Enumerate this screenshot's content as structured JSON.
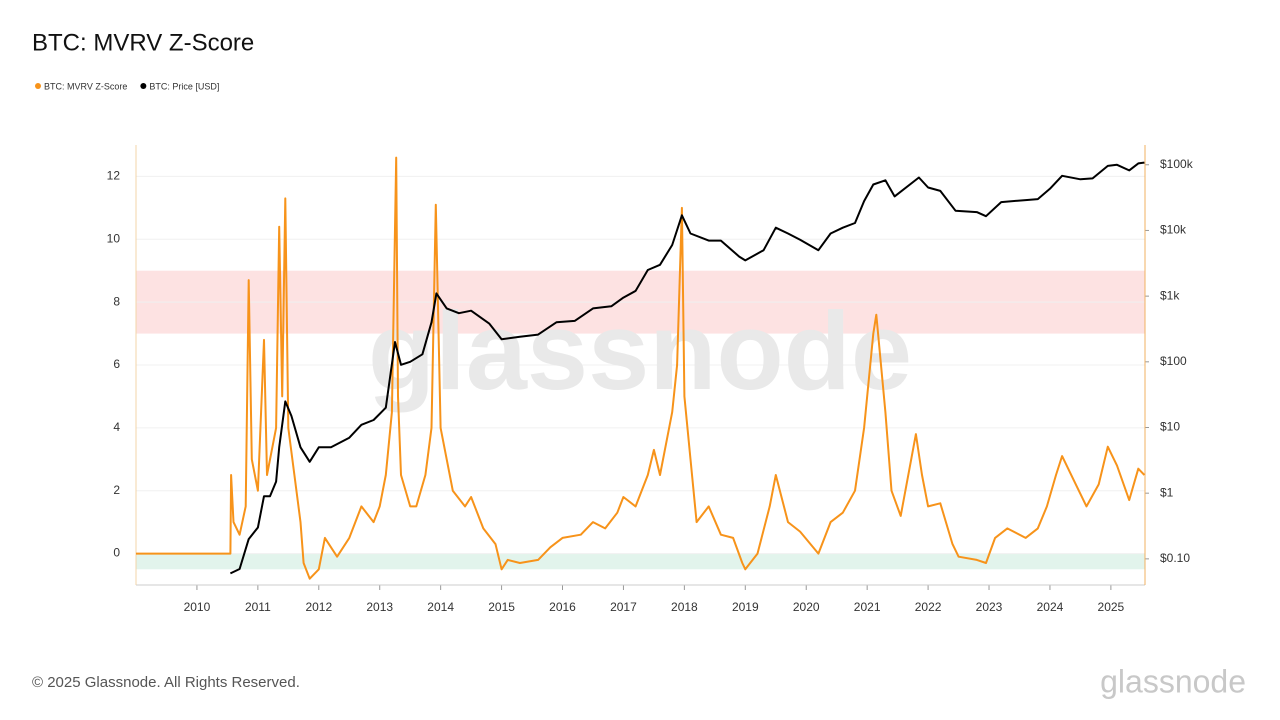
{
  "chart_data": {
    "type": "line",
    "title": "BTC: MVRV Z-Score",
    "legend": "top-left",
    "grid": true,
    "y2log": true,
    "xlim": [
      2009,
      2025.56
    ],
    "xticks": [
      2010,
      2011,
      2012,
      2013,
      2014,
      2015,
      2016,
      2017,
      2018,
      2019,
      2020,
      2021,
      2022,
      2023,
      2024,
      2025
    ],
    "ylim": [
      -1,
      13
    ],
    "yticks": [
      0,
      2,
      4,
      6,
      8,
      10,
      12
    ],
    "y2lim": [
      0.04,
      200000
    ],
    "y2ticks": [
      {
        "value": 100000,
        "label": "$100k"
      },
      {
        "value": 10000,
        "label": "$10k"
      },
      {
        "value": 1000,
        "label": "$1k"
      },
      {
        "value": 100,
        "label": "$100"
      },
      {
        "value": 10,
        "label": "$10"
      },
      {
        "value": 1,
        "label": "$1"
      },
      {
        "value": 0.1,
        "label": "$0.10"
      }
    ],
    "bands": [
      {
        "from": 7,
        "to": 9,
        "color": "#fde2e2"
      },
      {
        "from": -0.5,
        "to": 0,
        "color": "#e2f4ec"
      }
    ],
    "series": [
      {
        "name": "BTC: MVRV Z-Score",
        "color": "#f7931a",
        "x": [
          2009.0,
          2010.55,
          2010.56,
          2010.6,
          2010.7,
          2010.8,
          2010.85,
          2010.9,
          2011.0,
          2011.1,
          2011.15,
          2011.3,
          2011.35,
          2011.4,
          2011.45,
          2011.5,
          2011.6,
          2011.7,
          2011.75,
          2011.85,
          2012.0,
          2012.1,
          2012.3,
          2012.5,
          2012.7,
          2012.9,
          2013.0,
          2013.1,
          2013.2,
          2013.27,
          2013.3,
          2013.35,
          2013.5,
          2013.6,
          2013.75,
          2013.85,
          2013.92,
          2014.0,
          2014.1,
          2014.2,
          2014.4,
          2014.5,
          2014.7,
          2014.9,
          2015.0,
          2015.1,
          2015.3,
          2015.6,
          2015.8,
          2016.0,
          2016.3,
          2016.5,
          2016.7,
          2016.9,
          2017.0,
          2017.2,
          2017.4,
          2017.5,
          2017.6,
          2017.7,
          2017.8,
          2017.88,
          2017.96,
          2018.0,
          2018.1,
          2018.2,
          2018.4,
          2018.6,
          2018.8,
          2018.95,
          2019.0,
          2019.2,
          2019.4,
          2019.5,
          2019.7,
          2019.9,
          2020.2,
          2020.4,
          2020.6,
          2020.8,
          2020.95,
          2021.1,
          2021.15,
          2021.3,
          2021.4,
          2021.55,
          2021.8,
          2021.9,
          2022.0,
          2022.2,
          2022.4,
          2022.5,
          2022.8,
          2022.95,
          2023.1,
          2023.3,
          2023.6,
          2023.8,
          2023.95,
          2024.1,
          2024.2,
          2024.4,
          2024.6,
          2024.8,
          2024.95,
          2025.1,
          2025.3,
          2025.45,
          2025.55
        ],
        "values": [
          0,
          0,
          2.5,
          1.0,
          0.6,
          1.5,
          8.7,
          3,
          2.0,
          6.8,
          2.5,
          4,
          10.4,
          5,
          11.3,
          4,
          2.5,
          1.0,
          -0.3,
          -0.8,
          -0.5,
          0.5,
          -0.1,
          0.5,
          1.5,
          1.0,
          1.5,
          2.5,
          4.5,
          12.6,
          5,
          2.5,
          1.5,
          1.5,
          2.5,
          4,
          11.1,
          4,
          3,
          2.0,
          1.5,
          1.8,
          0.8,
          0.3,
          -0.5,
          -0.2,
          -0.3,
          -0.2,
          0.2,
          0.5,
          0.6,
          1.0,
          0.8,
          1.3,
          1.8,
          1.5,
          2.5,
          3.3,
          2.5,
          3.5,
          4.5,
          6.0,
          11.0,
          5,
          3,
          1.0,
          1.5,
          0.6,
          0.5,
          -0.3,
          -0.5,
          0,
          1.5,
          2.5,
          1.0,
          0.7,
          0,
          1.0,
          1.3,
          2.0,
          4.0,
          7.0,
          7.6,
          4.5,
          2.0,
          1.2,
          3.8,
          2.5,
          1.5,
          1.6,
          0.3,
          -0.1,
          -0.2,
          -0.3,
          0.5,
          0.8,
          0.5,
          0.8,
          1.5,
          2.5,
          3.1,
          2.3,
          1.5,
          2.2,
          3.4,
          2.8,
          1.7,
          2.7,
          2.5
        ]
      },
      {
        "name": "BTC: Price [USD]",
        "color": "#000000",
        "axis": "y2",
        "x": [
          2010.55,
          2010.7,
          2010.85,
          2011.0,
          2011.1,
          2011.2,
          2011.3,
          2011.35,
          2011.45,
          2011.55,
          2011.7,
          2011.85,
          2012.0,
          2012.2,
          2012.5,
          2012.7,
          2012.9,
          2013.1,
          2013.25,
          2013.35,
          2013.5,
          2013.7,
          2013.85,
          2013.93,
          2014.1,
          2014.3,
          2014.5,
          2014.8,
          2015.0,
          2015.3,
          2015.6,
          2015.9,
          2016.2,
          2016.5,
          2016.8,
          2017.0,
          2017.2,
          2017.4,
          2017.6,
          2017.8,
          2017.96,
          2018.1,
          2018.4,
          2018.6,
          2018.9,
          2019.0,
          2019.3,
          2019.5,
          2019.7,
          2019.9,
          2020.2,
          2020.4,
          2020.6,
          2020.8,
          2020.95,
          2021.1,
          2021.3,
          2021.45,
          2021.85,
          2022.0,
          2022.2,
          2022.45,
          2022.8,
          2022.95,
          2023.2,
          2023.6,
          2023.8,
          2024.0,
          2024.2,
          2024.5,
          2024.7,
          2024.95,
          2025.1,
          2025.3,
          2025.45,
          2025.55
        ],
        "values": [
          0.06,
          0.07,
          0.2,
          0.3,
          0.9,
          0.9,
          1.5,
          5,
          25,
          15,
          5,
          3,
          5,
          5,
          7,
          11,
          13,
          20,
          200,
          90,
          100,
          130,
          400,
          1100,
          650,
          550,
          600,
          380,
          220,
          240,
          260,
          400,
          420,
          650,
          700,
          950,
          1200,
          2500,
          3000,
          6000,
          17000,
          9000,
          7000,
          7000,
          4000,
          3500,
          5000,
          11000,
          9000,
          7200,
          5000,
          9000,
          11000,
          13000,
          28000,
          50000,
          58000,
          33000,
          64000,
          45000,
          40000,
          20000,
          19000,
          16500,
          27000,
          29000,
          30000,
          43000,
          68000,
          60000,
          62000,
          96000,
          100000,
          82000,
          105000,
          108000
        ]
      }
    ]
  },
  "watermark": "glassnode",
  "footer": {
    "copyright": "© 2025 Glassnode. All Rights Reserved.",
    "logo": "glassnode"
  }
}
